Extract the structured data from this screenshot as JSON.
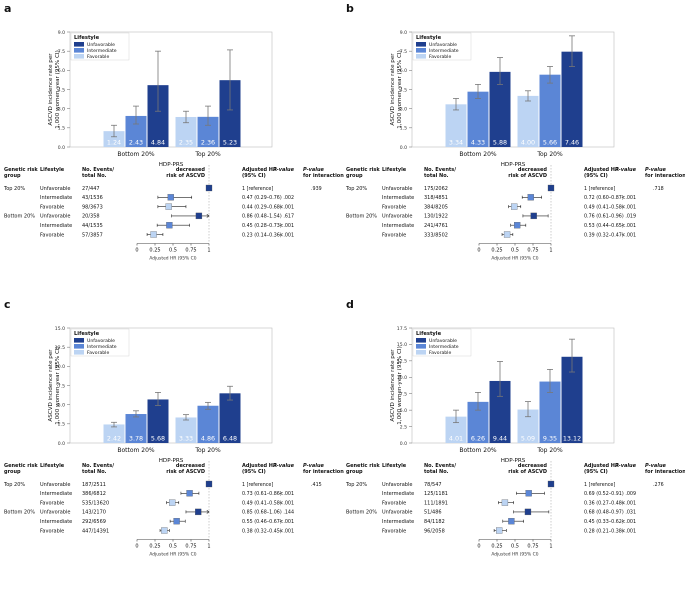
{
  "figure": {
    "axis_label_y": [
      "ASCVD incidence rate per",
      "1,000 women-year (95% CI)"
    ],
    "axis_label_x": "HDP-PRS",
    "legend_title": "Lifestyle",
    "legend_items": [
      "Unfavorable",
      "Intermediate",
      "Favorable"
    ],
    "colors": {
      "Unfavorable": "#1f3f8e",
      "Intermediate": "#5b86d6",
      "Favorable": "#bcd4f3"
    },
    "table_headers": {
      "group": [
        "Genetic risk",
        "group"
      ],
      "lifestyle": "Lifestyle",
      "events": [
        "No. Events/",
        "total No."
      ],
      "decreased": [
        "decreased",
        "risk of ASCVD"
      ],
      "hr": [
        "Adjusted HR",
        "(95% CI)"
      ],
      "p": "P-value",
      "pint": [
        "P-value",
        "for interaction"
      ]
    },
    "forest_axis_label": "Adjusted HR (95% CI)",
    "forest_ticks": [
      "0",
      "0.25",
      "0.5",
      "0.75",
      "1"
    ]
  },
  "panels": [
    {
      "letter": "a",
      "bar_chart": {
        "type": "bar",
        "ylim": [
          0,
          9
        ],
        "yticks": [
          "0.0",
          "1.5",
          "3.0",
          "4.5",
          "6.0",
          "7.5",
          "9.0"
        ],
        "tick_values": [
          0,
          1.5,
          3,
          4.5,
          6,
          7.5,
          9
        ],
        "categories": [
          "Bottom 20%",
          "Top 20%"
        ],
        "series": [
          {
            "name": "Favorable",
            "values": [
              "1.24",
              "2.35"
            ],
            "ci": [
              [
                0.8,
                1.7
              ],
              [
                1.9,
                2.8
              ]
            ]
          },
          {
            "name": "Intermediate",
            "values": [
              "2.43",
              "2.36"
            ],
            "ci": [
              [
                1.8,
                3.2
              ],
              [
                1.7,
                3.2
              ]
            ]
          },
          {
            "name": "Unfavorable",
            "values": [
              "4.84",
              "5.23"
            ],
            "ci": [
              [
                2.8,
                7.5
              ],
              [
                2.9,
                7.6
              ]
            ]
          }
        ]
      },
      "forest": {
        "rows": [
          {
            "group": "Top 20%",
            "lifestyle": "Unfavorable",
            "events": "27/447",
            "hr": "1 [reference]",
            "hr_val": 1,
            "lo": 1,
            "hi": 1,
            "p": "",
            "pint": ".939"
          },
          {
            "group": "",
            "lifestyle": "Intermediate",
            "events": "43/1536",
            "hr": "0.47 (0.29–0.76)",
            "hr_val": 0.47,
            "lo": 0.29,
            "hi": 0.76,
            "p": ".002",
            "pint": ""
          },
          {
            "group": "",
            "lifestyle": "Favorable",
            "events": "98/3673",
            "hr": "0.44 (0.29–0.68)",
            "hr_val": 0.44,
            "lo": 0.29,
            "hi": 0.68,
            "p": "<.001",
            "pint": ""
          },
          {
            "group": "Bottom 20%",
            "lifestyle": "Unfavorable",
            "events": "20/358",
            "hr": "0.86 (0.48–1.54)",
            "hr_val": 0.86,
            "lo": 0.48,
            "hi": 1.54,
            "p": ".617",
            "pint": ""
          },
          {
            "group": "",
            "lifestyle": "Intermediate",
            "events": "44/1535",
            "hr": "0.45 (0.28–0.73)",
            "hr_val": 0.45,
            "lo": 0.28,
            "hi": 0.73,
            "p": "<.001",
            "pint": ""
          },
          {
            "group": "",
            "lifestyle": "Favorable",
            "events": "57/3857",
            "hr": "0.23 (0.14–0.36)",
            "hr_val": 0.23,
            "lo": 0.14,
            "hi": 0.36,
            "p": "<.001",
            "pint": ""
          }
        ]
      }
    },
    {
      "letter": "b",
      "bar_chart": {
        "type": "bar",
        "ylim": [
          0,
          9
        ],
        "yticks": [
          "0.0",
          "1.5",
          "3.0",
          "4.5",
          "6.0",
          "7.5",
          "9.0"
        ],
        "tick_values": [
          0,
          1.5,
          3,
          4.5,
          6,
          7.5,
          9
        ],
        "categories": [
          "Bottom 20%",
          "Top 20%"
        ],
        "series": [
          {
            "name": "Favorable",
            "values": [
              "3.34",
              "4.00"
            ],
            "ci": [
              [
                2.9,
                3.8
              ],
              [
                3.6,
                4.4
              ]
            ]
          },
          {
            "name": "Intermediate",
            "values": [
              "4.33",
              "5.66"
            ],
            "ci": [
              [
                3.8,
                4.9
              ],
              [
                5.0,
                6.3
              ]
            ]
          },
          {
            "name": "Unfavorable",
            "values": [
              "5.88",
              "7.46"
            ],
            "ci": [
              [
                4.9,
                7.0
              ],
              [
                6.3,
                8.7
              ]
            ]
          }
        ]
      },
      "forest": {
        "rows": [
          {
            "group": "Top 20%",
            "lifestyle": "Unfavorable",
            "events": "175/2062",
            "hr": "1 [reference]",
            "hr_val": 1,
            "lo": 1,
            "hi": 1,
            "p": "",
            "pint": ".718"
          },
          {
            "group": "",
            "lifestyle": "Intermediate",
            "events": "318/4851",
            "hr": "0.72 (0.60–0.87)",
            "hr_val": 0.72,
            "lo": 0.6,
            "hi": 0.87,
            "p": "<.001",
            "pint": ""
          },
          {
            "group": "",
            "lifestyle": "Favorable",
            "events": "384/8205",
            "hr": "0.49 (0.41–0.58)",
            "hr_val": 0.49,
            "lo": 0.41,
            "hi": 0.58,
            "p": "<.001",
            "pint": ""
          },
          {
            "group": "Bottom 20%",
            "lifestyle": "Unfavorable",
            "events": "130/1922",
            "hr": "0.76 (0.61–0.96)",
            "hr_val": 0.76,
            "lo": 0.61,
            "hi": 0.96,
            "p": ".019",
            "pint": ""
          },
          {
            "group": "",
            "lifestyle": "Intermediate",
            "events": "241/4761",
            "hr": "0.53 (0.44–0.65)",
            "hr_val": 0.53,
            "lo": 0.44,
            "hi": 0.65,
            "p": "<.001",
            "pint": ""
          },
          {
            "group": "",
            "lifestyle": "Favorable",
            "events": "333/8502",
            "hr": "0.39 (0.32–0.47)",
            "hr_val": 0.39,
            "lo": 0.32,
            "hi": 0.47,
            "p": "<.001",
            "pint": ""
          }
        ]
      }
    },
    {
      "letter": "c",
      "bar_chart": {
        "type": "bar",
        "ylim": [
          0,
          15
        ],
        "yticks": [
          "0.0",
          "2.5",
          "5.0",
          "7.5",
          "10.0",
          "12.5",
          "15.0"
        ],
        "tick_values": [
          0,
          2.5,
          5,
          7.5,
          10,
          12.5,
          15
        ],
        "categories": [
          "Bottom 20%",
          "Top 20%"
        ],
        "series": [
          {
            "name": "Favorable",
            "values": [
              "2.42",
              "3.33"
            ],
            "ci": [
              [
                2.1,
                2.7
              ],
              [
                3.0,
                3.7
              ]
            ]
          },
          {
            "name": "Intermediate",
            "values": [
              "3.78",
              "4.86"
            ],
            "ci": [
              [
                3.4,
                4.2
              ],
              [
                4.4,
                5.3
              ]
            ]
          },
          {
            "name": "Unfavorable",
            "values": [
              "5.68",
              "6.48"
            ],
            "ci": [
              [
                4.9,
                6.6
              ],
              [
                5.6,
                7.4
              ]
            ]
          }
        ]
      },
      "forest": {
        "rows": [
          {
            "group": "Top 20%",
            "lifestyle": "Unfavorable",
            "events": "187/2511",
            "hr": "1 [reference]",
            "hr_val": 1,
            "lo": 1,
            "hi": 1,
            "p": "",
            "pint": ".415"
          },
          {
            "group": "",
            "lifestyle": "Intermediate",
            "events": "386/6812",
            "hr": "0.73 (0.61–0.86)",
            "hr_val": 0.73,
            "lo": 0.61,
            "hi": 0.86,
            "p": "<.001",
            "pint": ""
          },
          {
            "group": "",
            "lifestyle": "Favorable",
            "events": "535/13620",
            "hr": "0.49 (0.41–0.58)",
            "hr_val": 0.49,
            "lo": 0.41,
            "hi": 0.58,
            "p": "<.001",
            "pint": ""
          },
          {
            "group": "Bottom 20%",
            "lifestyle": "Unfavorable",
            "events": "143/2170",
            "hr": "0.85 (0.68–1.06)",
            "hr_val": 0.85,
            "lo": 0.68,
            "hi": 1.06,
            "p": ".144",
            "pint": ""
          },
          {
            "group": "",
            "lifestyle": "Intermediate",
            "events": "292/6569",
            "hr": "0.55 (0.46–0.67)",
            "hr_val": 0.55,
            "lo": 0.46,
            "hi": 0.67,
            "p": "<.001",
            "pint": ""
          },
          {
            "group": "",
            "lifestyle": "Favorable",
            "events": "447/14391",
            "hr": "0.38 (0.32–0.45)",
            "hr_val": 0.38,
            "lo": 0.32,
            "hi": 0.45,
            "p": "<.001",
            "pint": ""
          }
        ]
      }
    },
    {
      "letter": "d",
      "bar_chart": {
        "type": "bar",
        "ylim": [
          0,
          17.5
        ],
        "yticks": [
          "0.0",
          "2.5",
          "5.0",
          "7.5",
          "10.0",
          "12.5",
          "15.0",
          "17.5"
        ],
        "tick_values": [
          0,
          2.5,
          5,
          7.5,
          10,
          12.5,
          15,
          17.5
        ],
        "categories": [
          "Bottom 20%",
          "Top 20%"
        ],
        "series": [
          {
            "name": "Favorable",
            "values": [
              "4.01",
              "5.09"
            ],
            "ci": [
              [
                3.1,
                5.0
              ],
              [
                4.0,
                6.3
              ]
            ]
          },
          {
            "name": "Intermediate",
            "values": [
              "6.26",
              "9.35"
            ],
            "ci": [
              [
                5.0,
                7.7
              ],
              [
                7.7,
                11.2
              ]
            ]
          },
          {
            "name": "Unfavorable",
            "values": [
              "9.44",
              "13.12"
            ],
            "ci": [
              [
                7.1,
                12.4
              ],
              [
                10.8,
                15.8
              ]
            ]
          }
        ]
      },
      "forest": {
        "rows": [
          {
            "group": "Top 20%",
            "lifestyle": "Unfavorable",
            "events": "78/547",
            "hr": "1 [reference]",
            "hr_val": 1,
            "lo": 1,
            "hi": 1,
            "p": "",
            "pint": ".276"
          },
          {
            "group": "",
            "lifestyle": "Intermediate",
            "events": "125/1181",
            "hr": "0.69 (0.52–0.91)",
            "hr_val": 0.69,
            "lo": 0.52,
            "hi": 0.91,
            "p": ".009",
            "pint": ""
          },
          {
            "group": "",
            "lifestyle": "Favorable",
            "events": "111/1891",
            "hr": "0.36 (0.27–0.48)",
            "hr_val": 0.36,
            "lo": 0.27,
            "hi": 0.48,
            "p": "<.001",
            "pint": ""
          },
          {
            "group": "Bottom 20%",
            "lifestyle": "Unfavorable",
            "events": "51/486",
            "hr": "0.68 (0.48–0.97)",
            "hr_val": 0.68,
            "lo": 0.48,
            "hi": 0.97,
            "p": ".031",
            "pint": ""
          },
          {
            "group": "",
            "lifestyle": "Intermediate",
            "events": "84/1182",
            "hr": "0.45 (0.33–0.62)",
            "hr_val": 0.45,
            "lo": 0.33,
            "hi": 0.62,
            "p": "<.001",
            "pint": ""
          },
          {
            "group": "",
            "lifestyle": "Favorable",
            "events": "96/2058",
            "hr": "0.28 (0.21–0.38)",
            "hr_val": 0.28,
            "lo": 0.21,
            "hi": 0.38,
            "p": "<.001",
            "pint": ""
          }
        ]
      }
    }
  ],
  "chart_data": [
    {
      "panel": "a",
      "type": "bar",
      "title": "",
      "xlabel": "HDP-PRS",
      "ylabel": "ASCVD incidence rate per 1,000 women-year (95% CI)",
      "ylim": [
        0,
        9
      ],
      "categories": [
        "Bottom 20%",
        "Top 20%"
      ],
      "series": [
        {
          "name": "Favorable",
          "values": [
            1.24,
            2.35
          ]
        },
        {
          "name": "Intermediate",
          "values": [
            2.43,
            2.36
          ]
        },
        {
          "name": "Unfavorable",
          "values": [
            4.84,
            5.23
          ]
        }
      ]
    },
    {
      "panel": "b",
      "type": "bar",
      "title": "",
      "xlabel": "HDP-PRS",
      "ylabel": "ASCVD incidence rate per 1,000 women-year (95% CI)",
      "ylim": [
        0,
        9
      ],
      "categories": [
        "Bottom 20%",
        "Top 20%"
      ],
      "series": [
        {
          "name": "Favorable",
          "values": [
            3.34,
            4.0
          ]
        },
        {
          "name": "Intermediate",
          "values": [
            4.33,
            5.66
          ]
        },
        {
          "name": "Unfavorable",
          "values": [
            5.88,
            7.46
          ]
        }
      ]
    },
    {
      "panel": "c",
      "type": "bar",
      "title": "",
      "xlabel": "HDP-PRS",
      "ylabel": "ASCVD incidence rate per 1,000 women-year (95% CI)",
      "ylim": [
        0,
        15
      ],
      "categories": [
        "Bottom 20%",
        "Top 20%"
      ],
      "series": [
        {
          "name": "Favorable",
          "values": [
            2.42,
            3.33
          ]
        },
        {
          "name": "Intermediate",
          "values": [
            3.78,
            4.86
          ]
        },
        {
          "name": "Unfavorable",
          "values": [
            5.68,
            6.48
          ]
        }
      ]
    },
    {
      "panel": "d",
      "type": "bar",
      "title": "",
      "xlabel": "HDP-PRS",
      "ylabel": "ASCVD incidence rate per 1,000 women-year (95% CI)",
      "ylim": [
        0,
        17.5
      ],
      "categories": [
        "Bottom 20%",
        "Top 20%"
      ],
      "series": [
        {
          "name": "Favorable",
          "values": [
            4.01,
            5.09
          ]
        },
        {
          "name": "Intermediate",
          "values": [
            6.26,
            9.35
          ]
        },
        {
          "name": "Unfavorable",
          "values": [
            9.44,
            13.12
          ]
        }
      ]
    }
  ]
}
